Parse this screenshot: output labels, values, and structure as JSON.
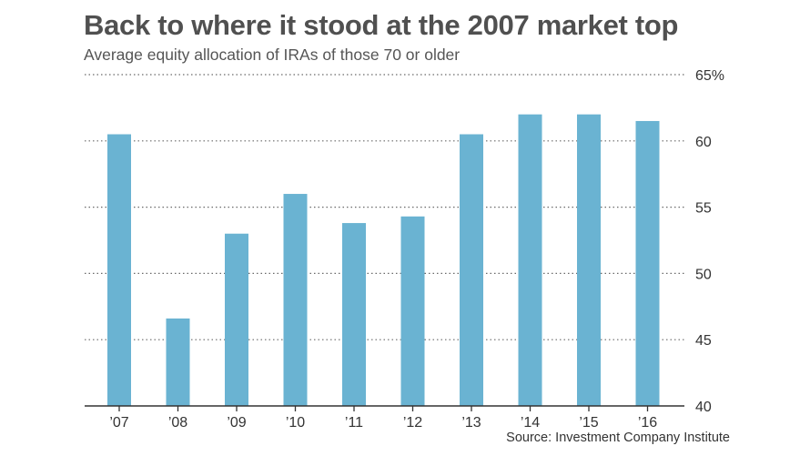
{
  "header": {
    "title": "Back to where it stood at the 2007 market top",
    "subtitle": "Average equity allocation of IRAs of those 70 or older"
  },
  "footer": {
    "source": "Source: Investment Company Institute"
  },
  "colors": {
    "bar": "#6ab3d2",
    "grid": "#6a6a6a",
    "axis": "#333333",
    "title": "#505050"
  },
  "chart_data": {
    "type": "bar",
    "title": "Back to where it stood at the 2007 market top",
    "subtitle": "Average equity allocation of IRAs of those 70 or older",
    "categories": [
      "’07",
      "’08",
      "’09",
      "’10",
      "’11",
      "’12",
      "’13",
      "’14",
      "’15",
      "’16"
    ],
    "values": [
      60.5,
      46.6,
      53.0,
      56.0,
      53.8,
      54.3,
      60.5,
      62.0,
      62.0,
      61.5
    ],
    "ylim": [
      40,
      65
    ],
    "yticks": [
      40,
      45,
      50,
      55,
      60,
      65
    ],
    "ytick_labels": [
      "40",
      "45",
      "50",
      "55",
      "60",
      "65%"
    ],
    "grid": true,
    "yaxis_position": "right",
    "unit": "%"
  }
}
